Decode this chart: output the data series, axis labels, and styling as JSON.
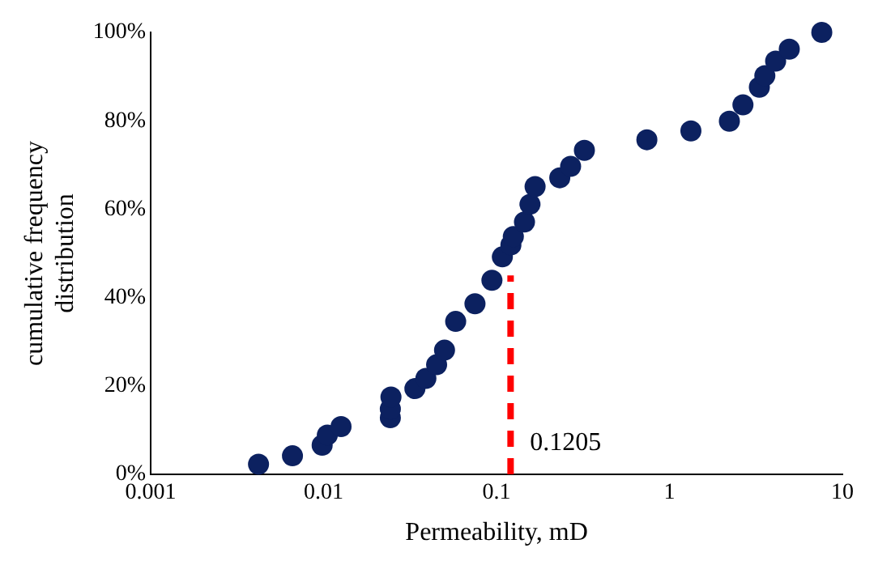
{
  "chart_data": {
    "type": "scatter",
    "xlabel": "Permeability, mD",
    "ylabel": "cumulative frequency distribution",
    "log": "x",
    "xlim": [
      0.001,
      10
    ],
    "xticks": [
      0.001,
      0.01,
      0.1,
      1,
      10
    ],
    "ylim": [
      0,
      100
    ],
    "yticks": [
      {
        "value": 0,
        "label": "0%"
      },
      {
        "value": 20,
        "label": "20%"
      },
      {
        "value": 40,
        "label": "40%"
      },
      {
        "value": 60,
        "label": "60%"
      },
      {
        "value": 80,
        "label": "80%"
      },
      {
        "value": 100,
        "label": "100%"
      }
    ],
    "grid": false,
    "legend": false,
    "marker": "circle",
    "series": [
      {
        "type": "scatter",
        "color": "#0c2160",
        "x": [
          0.0042,
          0.0066,
          0.0098,
          0.0105,
          0.0126,
          0.0243,
          0.0243,
          0.0245,
          0.0337,
          0.039,
          0.045,
          0.05,
          0.058,
          0.075,
          0.094,
          0.108,
          0.121,
          0.125,
          0.145,
          0.156,
          0.167,
          0.232,
          0.268,
          0.322,
          0.74,
          1.33,
          2.22,
          2.66,
          3.31,
          3.56,
          4.11,
          4.93,
          7.6
        ],
        "values": [
          2.3,
          4.2,
          6.6,
          8.9,
          10.8,
          12.8,
          14.8,
          17.5,
          19.4,
          21.7,
          24.8,
          28.1,
          34.6,
          38.6,
          43.9,
          49.2,
          51.9,
          53.8,
          57.1,
          61.1,
          65.1,
          67.1,
          69.7,
          73.3,
          75.7,
          77.7,
          79.9,
          83.6,
          87.6,
          90.2,
          93.5,
          96.2,
          100
        ]
      },
      {
        "type": "line",
        "color": "#ff0000",
        "line_style": "dashed",
        "marker": "none",
        "x": [
          0.1205,
          0.1205
        ],
        "values": [
          0,
          45
        ]
      }
    ],
    "annotations": [
      {
        "text": "0.1205",
        "x": 0.1205,
        "y": 7
      }
    ]
  }
}
